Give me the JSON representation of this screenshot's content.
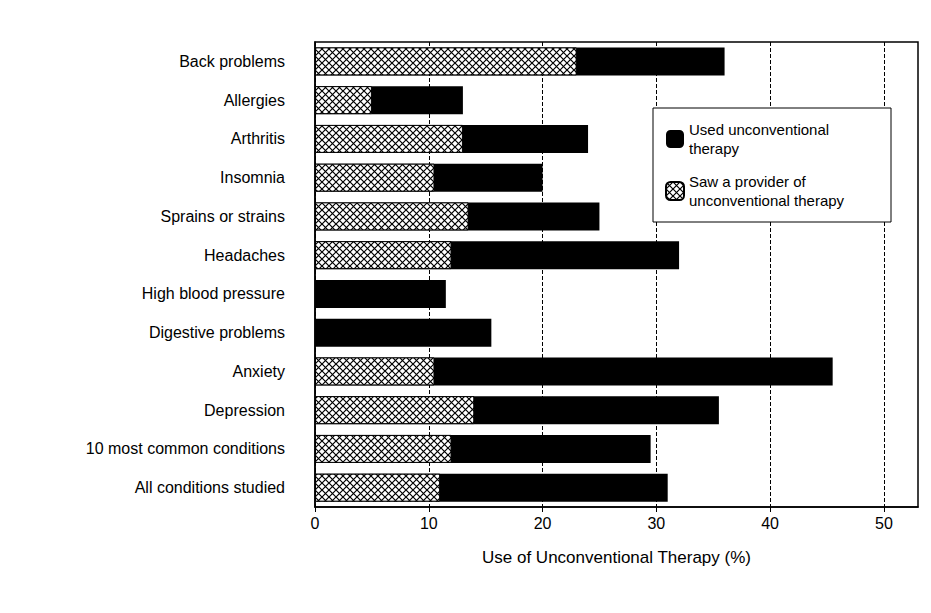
{
  "chart_data": {
    "type": "bar",
    "orientation": "horizontal",
    "categories": [
      "Back problems",
      "Allergies",
      "Arthritis",
      "Insomnia",
      "Sprains or strains",
      "Headaches",
      "High blood pressure",
      "Digestive problems",
      "Anxiety",
      "Depression",
      "10 most common conditions",
      "All conditions studied"
    ],
    "series": [
      {
        "name": "Used unconventional therapy",
        "color": "#000000",
        "values": [
          36,
          13,
          24,
          20,
          25,
          32,
          11.5,
          15.5,
          45.5,
          35.5,
          29.5,
          31
        ]
      },
      {
        "name": "Saw a provider of unconventional therapy",
        "color": "#000000",
        "marker": "crosshatch",
        "values": [
          23,
          5,
          13,
          10.5,
          13.5,
          12,
          null,
          null,
          10.5,
          14,
          12,
          11
        ]
      }
    ],
    "xlabel": "Use of Unconventional Therapy (%)",
    "xlim": [
      0,
      53
    ],
    "xticks": [
      0,
      10,
      20,
      30,
      40,
      50
    ],
    "grid": true,
    "legend": "upper right"
  }
}
